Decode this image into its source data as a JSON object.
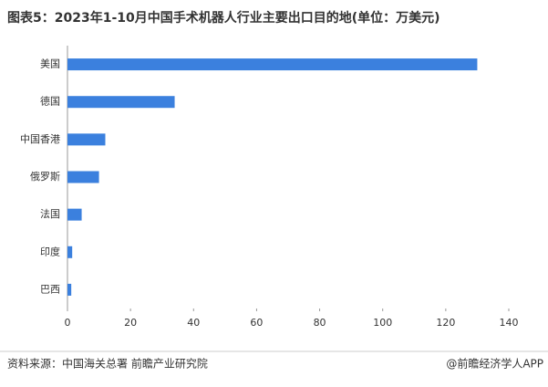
{
  "chart_data": {
    "type": "bar",
    "orientation": "horizontal",
    "title": "图表5：2023年1-10月中国手术机器人行业主要出口目的地(单位：万美元)",
    "categories": [
      "美国",
      "德国",
      "中国香港",
      "俄罗斯",
      "法国",
      "印度",
      "巴西"
    ],
    "values": [
      130,
      34,
      12,
      10,
      4.5,
      1.5,
      1.2
    ],
    "color": "#3b80de",
    "xlim": [
      0,
      140
    ],
    "xticks": [
      0,
      20,
      40,
      60,
      80,
      100,
      120,
      140
    ],
    "source": "资料来源：中国海关总署 前瞻产业研究院",
    "credit": "@前瞻经济学人APP"
  }
}
